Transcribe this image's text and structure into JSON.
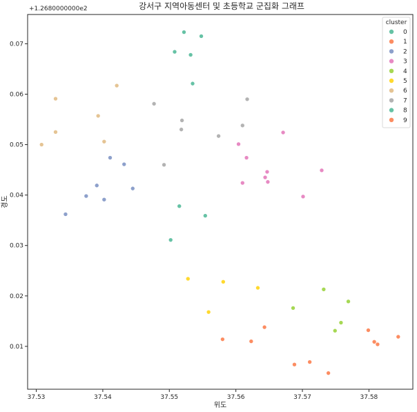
{
  "chart_data": {
    "type": "scatter",
    "title": "강서구 지역아동센터 및 초등학교 군집화 그래프",
    "xlabel": "위도",
    "ylabel": "경도",
    "y_offset_label": "+1.2680000000e2",
    "xlim": [
      37.5287,
      37.5866
    ],
    "ylim": [
      0.0015,
      0.0758
    ],
    "x_ticks": [
      37.53,
      37.54,
      37.55,
      37.56,
      37.57,
      37.58
    ],
    "x_tick_labels": [
      "37.53",
      "37.54",
      "37.55",
      "37.56",
      "37.57",
      "37.58"
    ],
    "y_ticks": [
      0.01,
      0.02,
      0.03,
      0.04,
      0.05,
      0.06,
      0.07
    ],
    "y_tick_labels": [
      "0.01",
      "0.02",
      "0.03",
      "0.04",
      "0.05",
      "0.06",
      "0.07"
    ],
    "grid": false,
    "legend": {
      "title": "cluster",
      "placement": "top-right"
    },
    "series": [
      {
        "name": "0",
        "color": "#66c2a5",
        "points": [
          [
            37.5522,
            0.0723
          ],
          [
            37.5548,
            0.0715
          ],
          [
            37.5508,
            0.0684
          ],
          [
            37.5532,
            0.0678
          ],
          [
            37.5535,
            0.0621
          ],
          [
            37.5515,
            0.0378
          ],
          [
            37.5554,
            0.0359
          ],
          [
            37.5502,
            0.0311
          ]
        ]
      },
      {
        "name": "1",
        "color": "#fc8d62",
        "points": [
          [
            37.558,
            0.0114
          ],
          [
            37.5623,
            0.011
          ],
          [
            37.5643,
            0.0138
          ],
          [
            37.5688,
            0.0064
          ],
          [
            37.5711,
            0.0069
          ],
          [
            37.5739,
            0.0047
          ],
          [
            37.5799,
            0.0132
          ],
          [
            37.5808,
            0.0109
          ],
          [
            37.5813,
            0.0104
          ],
          [
            37.5844,
            0.0119
          ]
        ]
      },
      {
        "name": "2",
        "color": "#8da0cb",
        "points": [
          [
            37.5411,
            0.0474
          ],
          [
            37.5432,
            0.0461
          ],
          [
            37.5391,
            0.0419
          ],
          [
            37.5445,
            0.0413
          ],
          [
            37.5375,
            0.0398
          ],
          [
            37.5402,
            0.0391
          ],
          [
            37.5344,
            0.0362
          ]
        ]
      },
      {
        "name": "3",
        "color": "#e78ac3",
        "points": [
          [
            37.5671,
            0.0524
          ],
          [
            37.5604,
            0.0501
          ],
          [
            37.5616,
            0.0474
          ],
          [
            37.5729,
            0.0449
          ],
          [
            37.5647,
            0.0446
          ],
          [
            37.5644,
            0.0435
          ],
          [
            37.5648,
            0.0426
          ],
          [
            37.561,
            0.0424
          ],
          [
            37.5701,
            0.0397
          ]
        ]
      },
      {
        "name": "4",
        "color": "#a6d854",
        "points": [
          [
            37.5732,
            0.0213
          ],
          [
            37.5769,
            0.0189
          ],
          [
            37.5686,
            0.0176
          ],
          [
            37.5758,
            0.0147
          ],
          [
            37.5749,
            0.0131
          ]
        ]
      },
      {
        "name": "5",
        "color": "#ffd92f",
        "points": [
          [
            37.5528,
            0.0234
          ],
          [
            37.5581,
            0.0228
          ],
          [
            37.5633,
            0.0216
          ],
          [
            37.5559,
            0.0168
          ]
        ]
      },
      {
        "name": "6",
        "color": "#e5c494",
        "points": [
          [
            37.5421,
            0.0617
          ],
          [
            37.5329,
            0.0591
          ],
          [
            37.5393,
            0.0557
          ],
          [
            37.5329,
            0.0525
          ],
          [
            37.5402,
            0.0506
          ],
          [
            37.5308,
            0.05
          ]
        ]
      },
      {
        "name": "7",
        "color": "#b3b3b3",
        "points": [
          [
            37.5617,
            0.059
          ],
          [
            37.5477,
            0.0581
          ],
          [
            37.5519,
            0.0548
          ],
          [
            37.561,
            0.0538
          ],
          [
            37.5518,
            0.053
          ],
          [
            37.5574,
            0.0517
          ],
          [
            37.5492,
            0.046
          ]
        ]
      },
      {
        "name": "8",
        "color": "#66c2a5",
        "points": []
      },
      {
        "name": "9",
        "color": "#fc8d62",
        "points": []
      }
    ]
  }
}
